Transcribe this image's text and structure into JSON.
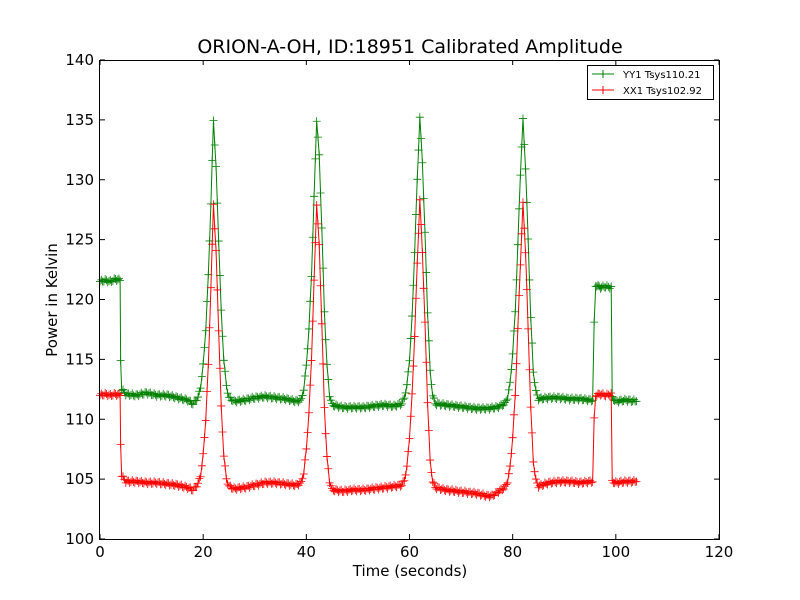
{
  "chart_data": {
    "type": "line",
    "title": "ORION-A-OH, ID:18951 Calibrated Amplitude",
    "xlabel": "Time (seconds)",
    "ylabel": "Power in Kelvin",
    "xlim": [
      0,
      120
    ],
    "ylim": [
      100,
      140
    ],
    "xticks": [
      0,
      20,
      40,
      60,
      80,
      100,
      120
    ],
    "yticks": [
      100,
      105,
      110,
      115,
      120,
      125,
      130,
      135,
      140
    ],
    "xtick_labels": [
      "0",
      "20",
      "40",
      "60",
      "80",
      "100",
      "120"
    ],
    "ytick_labels": [
      "100",
      "105",
      "110",
      "115",
      "120",
      "125",
      "130",
      "135",
      "140"
    ],
    "grid": false,
    "legend_position": "top-right",
    "marker": "+",
    "series": [
      {
        "name": "YY1 Tsys110.21",
        "color": "#008000",
        "points": [
          [
            0,
            121.5
          ],
          [
            1,
            121.6
          ],
          [
            2,
            121.5
          ],
          [
            3,
            121.7
          ],
          [
            3.9,
            121.6
          ],
          [
            4.0,
            115.0
          ],
          [
            4.2,
            112.5
          ],
          [
            5,
            112.1
          ],
          [
            7,
            112.0
          ],
          [
            9,
            112.2
          ],
          [
            11,
            112.0
          ],
          [
            13,
            112.0
          ],
          [
            15,
            111.8
          ],
          [
            17,
            111.6
          ],
          [
            18,
            111.3
          ],
          [
            19,
            111.8
          ],
          [
            19.5,
            112.7
          ],
          [
            20,
            114.5
          ],
          [
            20.5,
            117.5
          ],
          [
            21,
            122.0
          ],
          [
            21.5,
            128.0
          ],
          [
            22,
            135.0
          ],
          [
            22.5,
            131.0
          ],
          [
            23,
            125.0
          ],
          [
            23.5,
            119.0
          ],
          [
            24,
            115.0
          ],
          [
            24.5,
            112.8
          ],
          [
            25,
            111.8
          ],
          [
            26,
            111.5
          ],
          [
            28,
            111.6
          ],
          [
            30,
            111.8
          ],
          [
            32,
            111.9
          ],
          [
            34,
            111.8
          ],
          [
            36,
            111.7
          ],
          [
            38,
            111.5
          ],
          [
            39,
            111.6
          ],
          [
            39.5,
            112.5
          ],
          [
            40,
            114.5
          ],
          [
            40.5,
            117.5
          ],
          [
            41,
            122.0
          ],
          [
            41.5,
            128.5
          ],
          [
            42,
            135.0
          ],
          [
            42.5,
            132.0
          ],
          [
            43,
            126.0
          ],
          [
            43.5,
            119.0
          ],
          [
            44,
            114.5
          ],
          [
            44.5,
            112.0
          ],
          [
            45,
            111.2
          ],
          [
            47,
            111.0
          ],
          [
            49,
            111.0
          ],
          [
            51,
            111.0
          ],
          [
            53,
            111.1
          ],
          [
            55,
            111.2
          ],
          [
            57,
            111.1
          ],
          [
            58.5,
            111.3
          ],
          [
            59,
            111.8
          ],
          [
            59.5,
            112.8
          ],
          [
            60,
            115.0
          ],
          [
            60.5,
            118.5
          ],
          [
            61,
            124.0
          ],
          [
            61.5,
            130.0
          ],
          [
            62,
            135.2
          ],
          [
            62.5,
            131.5
          ],
          [
            63,
            125.5
          ],
          [
            63.5,
            119.0
          ],
          [
            64,
            114.0
          ],
          [
            64.5,
            112.0
          ],
          [
            65,
            111.3
          ],
          [
            67,
            111.2
          ],
          [
            69,
            111.1
          ],
          [
            71,
            111.0
          ],
          [
            73,
            110.9
          ],
          [
            75,
            110.9
          ],
          [
            77,
            111.0
          ],
          [
            78.5,
            111.3
          ],
          [
            79,
            111.8
          ],
          [
            79.5,
            113.0
          ],
          [
            80,
            115.5
          ],
          [
            80.5,
            119.0
          ],
          [
            81,
            124.5
          ],
          [
            81.5,
            130.5
          ],
          [
            82,
            135.0
          ],
          [
            82.5,
            131.0
          ],
          [
            83,
            125.0
          ],
          [
            83.5,
            118.5
          ],
          [
            84,
            114.0
          ],
          [
            84.5,
            112.3
          ],
          [
            85,
            111.7
          ],
          [
            87,
            111.8
          ],
          [
            89,
            111.8
          ],
          [
            91,
            111.7
          ],
          [
            93,
            111.7
          ],
          [
            95,
            111.6
          ],
          [
            95.5,
            111.6
          ],
          [
            95.8,
            118.0
          ],
          [
            96.1,
            121.2
          ],
          [
            97,
            121.0
          ],
          [
            98,
            121.1
          ],
          [
            99.1,
            121.0
          ],
          [
            99.3,
            111.8
          ],
          [
            100,
            111.5
          ],
          [
            102,
            111.6
          ],
          [
            104,
            111.5
          ]
        ]
      },
      {
        "name": "XX1 Tsys102.92",
        "color": "#ff0000",
        "points": [
          [
            0,
            112.0
          ],
          [
            1,
            112.1
          ],
          [
            2,
            112.0
          ],
          [
            3,
            112.1
          ],
          [
            3.9,
            112.0
          ],
          [
            4.0,
            108.0
          ],
          [
            4.2,
            105.3
          ],
          [
            5,
            104.8
          ],
          [
            7,
            104.8
          ],
          [
            9,
            104.7
          ],
          [
            11,
            104.7
          ],
          [
            13,
            104.6
          ],
          [
            15,
            104.5
          ],
          [
            17,
            104.3
          ],
          [
            18,
            104.1
          ],
          [
            19,
            104.6
          ],
          [
            19.5,
            105.3
          ],
          [
            20,
            107.0
          ],
          [
            20.5,
            110.0
          ],
          [
            21,
            114.5
          ],
          [
            21.5,
            121.0
          ],
          [
            22,
            128.0
          ],
          [
            22.5,
            124.0
          ],
          [
            23,
            117.5
          ],
          [
            23.5,
            111.0
          ],
          [
            24,
            107.0
          ],
          [
            24.5,
            105.0
          ],
          [
            25,
            104.4
          ],
          [
            26,
            104.2
          ],
          [
            28,
            104.3
          ],
          [
            30,
            104.5
          ],
          [
            32,
            104.7
          ],
          [
            34,
            104.7
          ],
          [
            36,
            104.6
          ],
          [
            38,
            104.5
          ],
          [
            39,
            104.7
          ],
          [
            39.5,
            105.5
          ],
          [
            40,
            107.5
          ],
          [
            40.5,
            110.5
          ],
          [
            41,
            115.0
          ],
          [
            41.5,
            121.5
          ],
          [
            42,
            128.0
          ],
          [
            42.5,
            124.5
          ],
          [
            43,
            118.0
          ],
          [
            43.5,
            111.0
          ],
          [
            44,
            106.8
          ],
          [
            44.5,
            104.8
          ],
          [
            45,
            104.1
          ],
          [
            47,
            104.0
          ],
          [
            49,
            104.1
          ],
          [
            51,
            104.1
          ],
          [
            53,
            104.2
          ],
          [
            55,
            104.3
          ],
          [
            57,
            104.4
          ],
          [
            58.5,
            104.5
          ],
          [
            59,
            104.9
          ],
          [
            59.5,
            106.0
          ],
          [
            60,
            108.5
          ],
          [
            60.5,
            112.0
          ],
          [
            61,
            117.0
          ],
          [
            61.5,
            123.0
          ],
          [
            62,
            128.3
          ],
          [
            62.5,
            124.0
          ],
          [
            63,
            118.0
          ],
          [
            63.5,
            111.5
          ],
          [
            64,
            106.5
          ],
          [
            64.5,
            104.8
          ],
          [
            65,
            104.3
          ],
          [
            67,
            104.1
          ],
          [
            69,
            104.0
          ],
          [
            71,
            103.9
          ],
          [
            73,
            103.8
          ],
          [
            75,
            103.6
          ],
          [
            76,
            103.6
          ],
          [
            77,
            103.9
          ],
          [
            78.5,
            104.3
          ],
          [
            79,
            104.8
          ],
          [
            79.5,
            106.0
          ],
          [
            80,
            108.5
          ],
          [
            80.5,
            112.0
          ],
          [
            81,
            117.5
          ],
          [
            81.5,
            123.0
          ],
          [
            82,
            128.0
          ],
          [
            82.5,
            124.0
          ],
          [
            83,
            117.5
          ],
          [
            83.5,
            111.0
          ],
          [
            84,
            106.5
          ],
          [
            84.5,
            104.9
          ],
          [
            85,
            104.4
          ],
          [
            87,
            104.7
          ],
          [
            89,
            104.8
          ],
          [
            91,
            104.8
          ],
          [
            93,
            104.7
          ],
          [
            95,
            104.8
          ],
          [
            95.5,
            104.8
          ],
          [
            95.8,
            110.0
          ],
          [
            96.1,
            112.0
          ],
          [
            97,
            112.1
          ],
          [
            98,
            112.0
          ],
          [
            99.1,
            112.1
          ],
          [
            99.3,
            104.8
          ],
          [
            100,
            104.7
          ],
          [
            102,
            104.8
          ],
          [
            104,
            104.8
          ]
        ]
      }
    ]
  }
}
